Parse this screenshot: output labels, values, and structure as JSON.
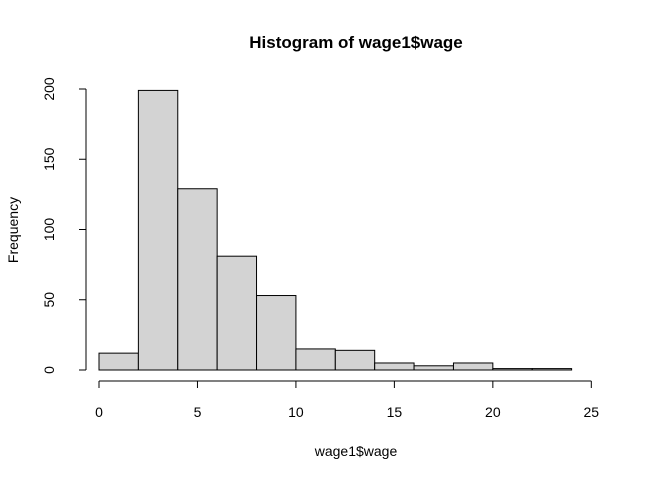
{
  "chart_data": {
    "type": "bar",
    "title": "Histogram of wage1$wage",
    "xlabel": "wage1$wage",
    "ylabel": "Frequency",
    "bins": [
      {
        "start": 0,
        "end": 2,
        "count": 12
      },
      {
        "start": 2,
        "end": 4,
        "count": 199
      },
      {
        "start": 4,
        "end": 6,
        "count": 129
      },
      {
        "start": 6,
        "end": 8,
        "count": 81
      },
      {
        "start": 8,
        "end": 10,
        "count": 53
      },
      {
        "start": 10,
        "end": 12,
        "count": 15
      },
      {
        "start": 12,
        "end": 14,
        "count": 14
      },
      {
        "start": 14,
        "end": 16,
        "count": 5
      },
      {
        "start": 16,
        "end": 18,
        "count": 3
      },
      {
        "start": 18,
        "end": 20,
        "count": 5
      },
      {
        "start": 20,
        "end": 22,
        "count": 1
      },
      {
        "start": 22,
        "end": 24,
        "count": 1
      },
      {
        "start": 24,
        "end": 26,
        "count": 0
      }
    ],
    "xlim": [
      0,
      26
    ],
    "ylim": [
      0,
      200
    ],
    "xticks": [
      0,
      5,
      10,
      15,
      20,
      25
    ],
    "yticks": [
      0,
      50,
      100,
      150,
      200
    ],
    "bar_fill": "#d3d3d3",
    "bar_stroke": "#000000",
    "grid": false,
    "legend": "none"
  }
}
